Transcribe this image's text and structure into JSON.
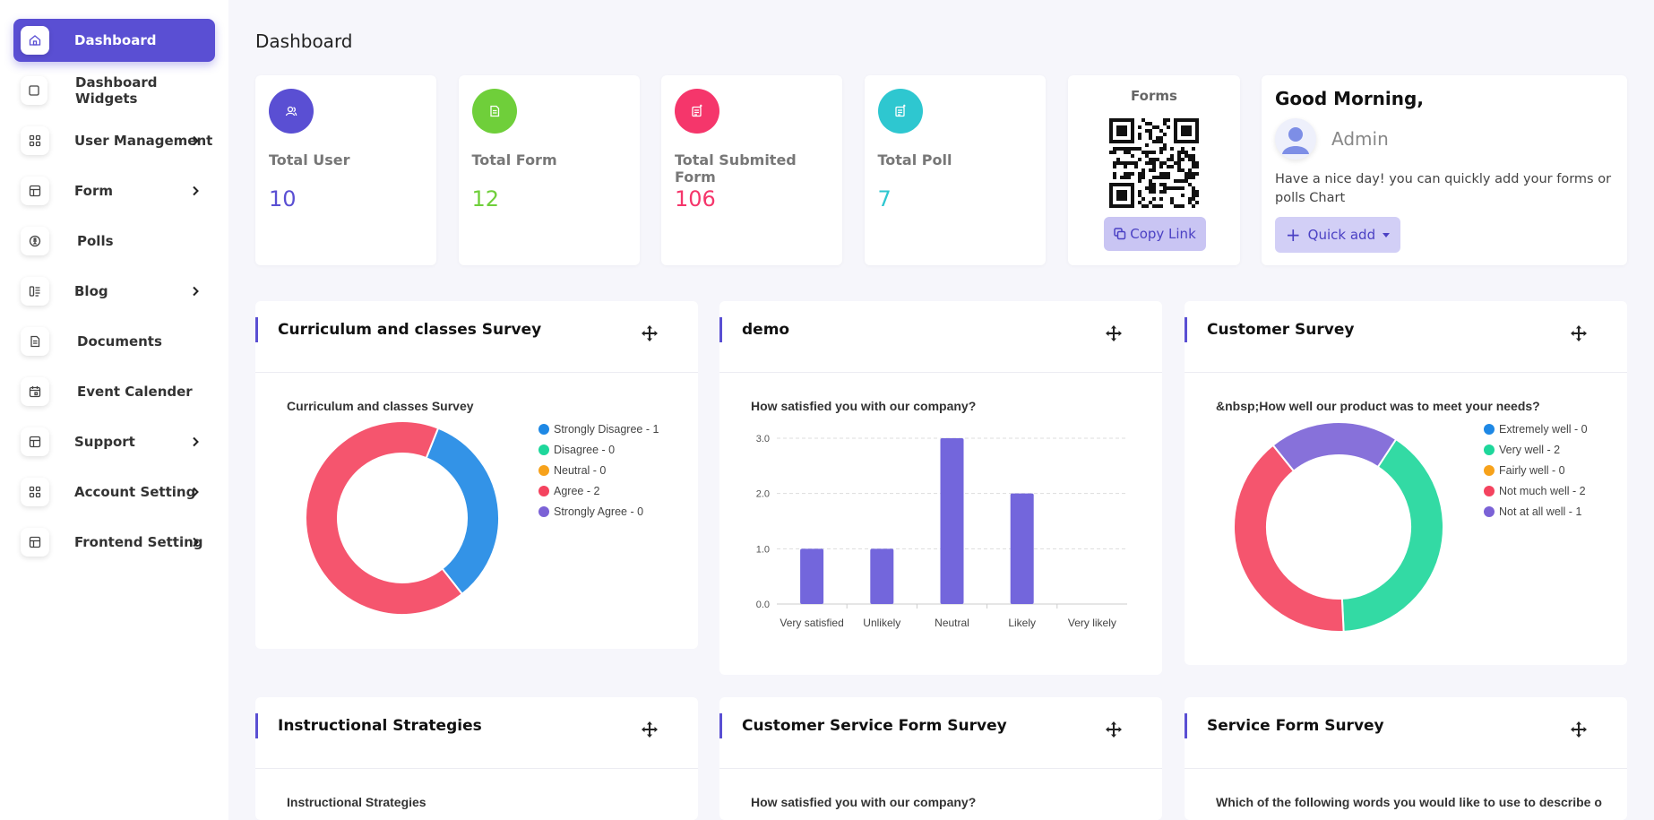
{
  "sidebar": {
    "items": [
      {
        "label": "Dashboard",
        "icon": "home-icon",
        "active": true,
        "chevron": false
      },
      {
        "label": "Dashboard Widgets",
        "icon": "square-icon",
        "chevron": false
      },
      {
        "label": "User Management",
        "icon": "grid-icon",
        "chevron": true
      },
      {
        "label": "Form",
        "icon": "table-icon",
        "chevron": true
      },
      {
        "label": "Polls",
        "icon": "poll-icon",
        "chevron": false
      },
      {
        "label": "Blog",
        "icon": "blog-icon",
        "chevron": true
      },
      {
        "label": "Documents",
        "icon": "document-icon",
        "chevron": false
      },
      {
        "label": "Event Calender",
        "icon": "calendar-icon",
        "chevron": false
      },
      {
        "label": "Support",
        "icon": "table-icon",
        "chevron": true
      },
      {
        "label": "Account Setting",
        "icon": "grid-icon",
        "chevron": true
      },
      {
        "label": "Frontend Setting",
        "icon": "table-icon",
        "chevron": true
      }
    ]
  },
  "page_title": "Dashboard",
  "stats": [
    {
      "label": "Total User",
      "value": "10",
      "color": "#5a4fd3",
      "icon": "users-icon"
    },
    {
      "label": "Total Form",
      "value": "12",
      "color": "#6fcf3a",
      "icon": "form-icon"
    },
    {
      "label": "Total Submited Form",
      "value": "106",
      "color": "#f5366b",
      "icon": "submitted-form-icon"
    },
    {
      "label": "Total Poll",
      "value": "7",
      "color": "#2ec7d0",
      "icon": "poll-icon"
    }
  ],
  "qr_card": {
    "title": "Forms",
    "button": "Copy Link"
  },
  "greeting": {
    "title": "Good Morning,",
    "name": "Admin",
    "text": "Have a nice day! you can quickly add your forms or polls Chart",
    "button": "Quick add"
  },
  "widgets": [
    {
      "title": "Curriculum and classes Survey"
    },
    {
      "title": "demo"
    },
    {
      "title": "Customer Survey"
    },
    {
      "title": "Instructional Strategies"
    },
    {
      "title": "Customer Service Form Survey"
    },
    {
      "title": "Service Form Survey"
    }
  ],
  "chart_data": [
    {
      "type": "pie",
      "title": "Curriculum and classes Survey",
      "categories": [
        "Strongly Disagree - 1",
        "Disagree - 0",
        "Neutral - 0",
        "Agree - 2",
        "Strongly Agree - 0"
      ],
      "values": [
        1,
        0,
        0,
        2,
        0
      ],
      "colors": [
        "#1e88e5",
        "#1ed79b",
        "#f7a21b",
        "#f4435f",
        "#7b62d6"
      ],
      "legend": "right"
    },
    {
      "type": "bar",
      "title": "How satisfied you with our company?",
      "categories": [
        "Very satisfied",
        "Unlikely",
        "Neutral",
        "Likely",
        "Very likely"
      ],
      "values": [
        1,
        1,
        3,
        2,
        0
      ],
      "yticks": [
        "0.0",
        "1.0",
        "2.0",
        "3.0"
      ],
      "ylim": [
        0,
        3
      ],
      "color": "#7366dc",
      "grid": true
    },
    {
      "type": "pie",
      "title": "&nbsp;How well our product was to meet your needs?",
      "categories": [
        "Extremely well - 0",
        "Very well - 2",
        "Fairly well - 0",
        "Not much well - 2",
        "Not at all well - 1"
      ],
      "values": [
        0,
        2,
        0,
        2,
        1
      ],
      "colors": [
        "#1e88e5",
        "#1ed79b",
        "#f7a21b",
        "#f4435f",
        "#7b62d6"
      ],
      "legend": "right"
    },
    {
      "type": "pie",
      "title": "Instructional Strategies"
    },
    {
      "type": "bar",
      "title": "How satisfied you with our company?"
    },
    {
      "type": "pie",
      "title": "Which of the following words you would like to use to describe o"
    }
  ]
}
